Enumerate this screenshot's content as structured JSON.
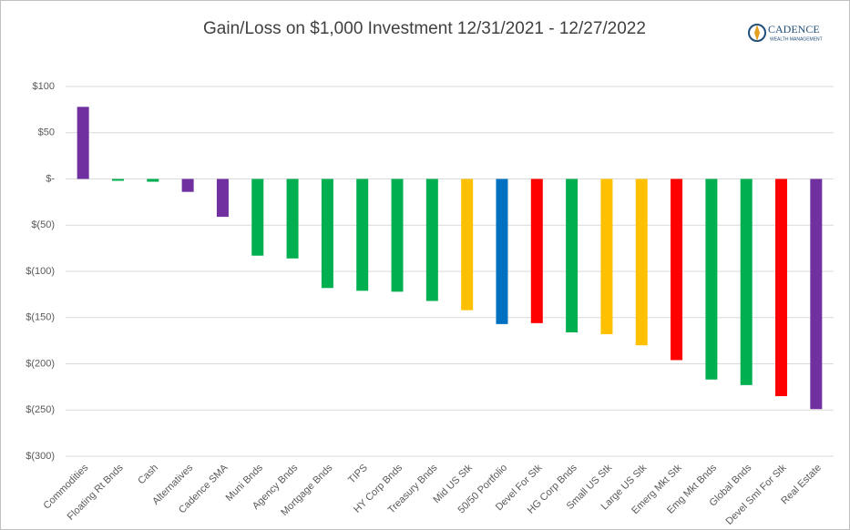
{
  "logo": {
    "name": "CADENCE",
    "tagline": "WEALTH MANAGEMENT"
  },
  "chart_data": {
    "type": "bar",
    "title": "Gain/Loss on $1,000 Investment 12/31/2021 - 12/27/2022",
    "categories": [
      "Commodities",
      "Floating Rt Bnds",
      "Cash",
      "Alternatives",
      "Cadence SMA",
      "Muni Bnds",
      "Agency Bnds",
      "Mortgage Bnds",
      "TIPS",
      "HY Corp Bnds",
      "Treasury Bnds",
      "Mid US Stk",
      "50/50 Portfolio",
      "Devel For Stk",
      "HG Corp Bnds",
      "Small US Stk",
      "Large US Stk",
      "Emerg Mkt Stk",
      "Emg Mkt Bnds",
      "Global Bnds",
      "Devel Sml For Stk",
      "Real Estate"
    ],
    "values": [
      78,
      -2,
      -3,
      -14,
      -41,
      -83,
      -86,
      -118,
      -121,
      -122,
      -132,
      -142,
      -157,
      -156,
      -166,
      -168,
      -180,
      -196,
      -217,
      -223,
      -235,
      -249
    ],
    "colors": [
      "#7030a0",
      "#00b050",
      "#00b050",
      "#7030a0",
      "#7030a0",
      "#00b050",
      "#00b050",
      "#00b050",
      "#00b050",
      "#00b050",
      "#00b050",
      "#ffc000",
      "#0070c0",
      "#ff0000",
      "#00b050",
      "#ffc000",
      "#ffc000",
      "#ff0000",
      "#00b050",
      "#00b050",
      "#ff0000",
      "#7030a0"
    ],
    "ylim": [
      -300,
      100
    ],
    "yticks": [
      {
        "value": 100,
        "label": "$100"
      },
      {
        "value": 50,
        "label": "$50"
      },
      {
        "value": 0,
        "label": "$-"
      },
      {
        "value": -50,
        "label": "$(50)"
      },
      {
        "value": -100,
        "label": "$(100)"
      },
      {
        "value": -150,
        "label": "$(150)"
      },
      {
        "value": -200,
        "label": "$(200)"
      },
      {
        "value": -250,
        "label": "$(250)"
      },
      {
        "value": -300,
        "label": "$(300)"
      }
    ],
    "grid": true
  }
}
